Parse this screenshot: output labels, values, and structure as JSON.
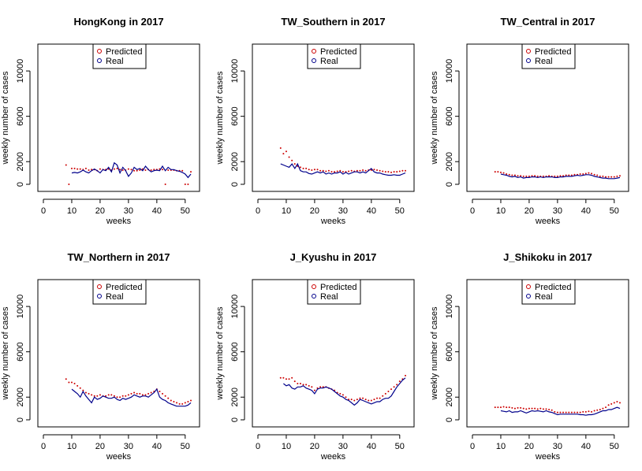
{
  "page": {
    "background": "#ffffff"
  },
  "colors": {
    "predicted": "#cc0000",
    "real": "#00008b",
    "axis": "#000000"
  },
  "chart_data": [
    {
      "type": "line",
      "title": "HongKong  in 2017",
      "xlabel": "weeks",
      "ylabel": "weekly number of cases",
      "xlim": [
        0,
        53
      ],
      "ylim": [
        0,
        12300
      ],
      "xticks": [
        0,
        10,
        20,
        30,
        40,
        50
      ],
      "yticks": [
        0,
        2000,
        6000,
        10000
      ],
      "legend": {
        "position": "top-center",
        "entries": [
          "Predicted",
          "Real"
        ]
      },
      "x": [
        8,
        9,
        10,
        11,
        12,
        13,
        14,
        15,
        16,
        17,
        18,
        19,
        20,
        21,
        22,
        23,
        24,
        25,
        26,
        27,
        28,
        29,
        30,
        31,
        32,
        33,
        34,
        35,
        36,
        37,
        38,
        39,
        40,
        41,
        42,
        43,
        44,
        45,
        46,
        47,
        48,
        49,
        50,
        51,
        52
      ],
      "series": [
        {
          "name": "Predicted",
          "style": "points",
          "color": "#cc0000",
          "values": [
            1700,
            0,
            1400,
            1400,
            1350,
            1350,
            1300,
            1400,
            1250,
            1300,
            1300,
            1200,
            1350,
            1300,
            1300,
            1350,
            1250,
            1350,
            1400,
            1300,
            1250,
            1250,
            1350,
            1300,
            1200,
            1200,
            1250,
            1350,
            1250,
            1300,
            1250,
            1300,
            1300,
            1350,
            1300,
            0,
            1250,
            1250,
            1250,
            1200,
            1200,
            1200,
            0,
            0,
            1100
          ]
        },
        {
          "name": "Real",
          "style": "line",
          "color": "#00008b",
          "values": [
            null,
            null,
            1000,
            1050,
            1000,
            1100,
            1250,
            1100,
            1000,
            1200,
            1350,
            1200,
            1000,
            1300,
            1200,
            1500,
            1100,
            1900,
            1700,
            1000,
            1500,
            1200,
            700,
            1000,
            1500,
            1300,
            1400,
            1200,
            1600,
            1300,
            1100,
            1200,
            1250,
            1200,
            1600,
            1200,
            1500,
            1300,
            1300,
            1200,
            1150,
            1050,
            900,
            600,
            900
          ]
        }
      ]
    },
    {
      "type": "line",
      "title": "TW_Southern  in 2017",
      "xlabel": "weeks",
      "ylabel": "weekly number of cases",
      "xlim": [
        0,
        53
      ],
      "ylim": [
        0,
        12300
      ],
      "xticks": [
        0,
        10,
        20,
        30,
        40,
        50
      ],
      "yticks": [
        0,
        2000,
        6000,
        10000
      ],
      "legend": {
        "position": "top-center",
        "entries": [
          "Predicted",
          "Real"
        ]
      },
      "x": [
        8,
        9,
        10,
        11,
        12,
        13,
        14,
        15,
        16,
        17,
        18,
        19,
        20,
        21,
        22,
        23,
        24,
        25,
        26,
        27,
        28,
        29,
        30,
        31,
        32,
        33,
        34,
        35,
        36,
        37,
        38,
        39,
        40,
        41,
        42,
        43,
        44,
        45,
        46,
        47,
        48,
        49,
        50,
        51,
        52
      ],
      "series": [
        {
          "name": "Predicted",
          "style": "points",
          "color": "#cc0000",
          "values": [
            3200,
            2700,
            2900,
            2400,
            2100,
            1800,
            1600,
            1500,
            1400,
            1400,
            1300,
            1250,
            1300,
            1300,
            1200,
            1200,
            1150,
            1200,
            1100,
            1100,
            1150,
            1200,
            1100,
            1100,
            1150,
            1200,
            1150,
            1200,
            1200,
            1250,
            1200,
            1250,
            1250,
            1300,
            1250,
            1200,
            1150,
            1100,
            1100,
            1050,
            1100,
            1100,
            1150,
            1200,
            1200
          ]
        },
        {
          "name": "Real",
          "style": "line",
          "color": "#00008b",
          "values": [
            1800,
            1700,
            1600,
            1500,
            1800,
            1400,
            1800,
            1200,
            1100,
            1100,
            950,
            900,
            1000,
            1100,
            1000,
            1100,
            900,
            1000,
            900,
            1000,
            1000,
            1100,
            900,
            1050,
            900,
            1000,
            1100,
            1100,
            1000,
            1100,
            1000,
            1200,
            1400,
            1100,
            1000,
            1000,
            900,
            850,
            800,
            800,
            850,
            800,
            800,
            900,
            1000
          ]
        }
      ]
    },
    {
      "type": "line",
      "title": "TW_Central  in 2017",
      "xlabel": "weeks",
      "ylabel": "weekly number of cases",
      "xlim": [
        0,
        53
      ],
      "ylim": [
        0,
        12300
      ],
      "xticks": [
        0,
        10,
        20,
        30,
        40,
        50
      ],
      "yticks": [
        0,
        2000,
        6000,
        10000
      ],
      "legend": {
        "position": "top-center",
        "entries": [
          "Predicted",
          "Real"
        ]
      },
      "x": [
        8,
        9,
        10,
        11,
        12,
        13,
        14,
        15,
        16,
        17,
        18,
        19,
        20,
        21,
        22,
        23,
        24,
        25,
        26,
        27,
        28,
        29,
        30,
        31,
        32,
        33,
        34,
        35,
        36,
        37,
        38,
        39,
        40,
        41,
        42,
        43,
        44,
        45,
        46,
        47,
        48,
        49,
        50,
        51,
        52
      ],
      "series": [
        {
          "name": "Predicted",
          "style": "points",
          "color": "#cc0000",
          "values": [
            1100,
            1100,
            1050,
            1000,
            900,
            850,
            800,
            800,
            750,
            750,
            700,
            700,
            700,
            750,
            750,
            700,
            700,
            700,
            700,
            750,
            700,
            700,
            700,
            750,
            750,
            800,
            800,
            800,
            850,
            850,
            900,
            900,
            950,
            1000,
            950,
            850,
            800,
            700,
            700,
            650,
            650,
            650,
            650,
            700,
            750
          ]
        },
        {
          "name": "Real",
          "style": "line",
          "color": "#00008b",
          "values": [
            null,
            null,
            900,
            850,
            800,
            700,
            650,
            700,
            600,
            650,
            550,
            600,
            600,
            650,
            650,
            600,
            650,
            600,
            650,
            650,
            650,
            600,
            600,
            650,
            650,
            700,
            700,
            700,
            750,
            800,
            750,
            800,
            850,
            850,
            800,
            700,
            650,
            600,
            550,
            550,
            500,
            500,
            500,
            550,
            600
          ]
        }
      ]
    },
    {
      "type": "line",
      "title": "TW_Northern  in 2017",
      "xlabel": "weeks",
      "ylabel": "weekly number of cases",
      "xlim": [
        0,
        53
      ],
      "ylim": [
        0,
        12300
      ],
      "xticks": [
        0,
        10,
        20,
        30,
        40,
        50
      ],
      "yticks": [
        0,
        2000,
        6000,
        10000
      ],
      "legend": {
        "position": "top-center",
        "entries": [
          "Predicted",
          "Real"
        ]
      },
      "x": [
        8,
        9,
        10,
        11,
        12,
        13,
        14,
        15,
        16,
        17,
        18,
        19,
        20,
        21,
        22,
        23,
        24,
        25,
        26,
        27,
        28,
        29,
        30,
        31,
        32,
        33,
        34,
        35,
        36,
        37,
        38,
        39,
        40,
        41,
        42,
        43,
        44,
        45,
        46,
        47,
        48,
        49,
        50,
        51,
        52
      ],
      "series": [
        {
          "name": "Predicted",
          "style": "points",
          "color": "#cc0000",
          "values": [
            3600,
            3300,
            3300,
            3200,
            3000,
            2800,
            2600,
            2400,
            2300,
            2200,
            2100,
            2100,
            2200,
            2100,
            2100,
            2200,
            2200,
            2100,
            2000,
            2000,
            2100,
            2100,
            2200,
            2300,
            2400,
            2300,
            2300,
            2200,
            2200,
            2300,
            2400,
            2500,
            2700,
            2500,
            2300,
            2100,
            1900,
            1700,
            1600,
            1500,
            1400,
            1400,
            1500,
            1600,
            1700
          ]
        },
        {
          "name": "Real",
          "style": "line",
          "color": "#00008b",
          "values": [
            null,
            null,
            2700,
            2500,
            2300,
            2000,
            2500,
            2100,
            1800,
            1500,
            2000,
            1800,
            1900,
            2100,
            2000,
            1900,
            1900,
            2000,
            1800,
            1700,
            1900,
            1800,
            1900,
            2000,
            2200,
            2100,
            2000,
            2100,
            2100,
            2000,
            2200,
            2400,
            2700,
            2000,
            1800,
            1700,
            1500,
            1400,
            1300,
            1200,
            1200,
            1200,
            1200,
            1300,
            1500
          ]
        }
      ]
    },
    {
      "type": "line",
      "title": "J_Kyushu  in 2017",
      "xlabel": "weeks",
      "ylabel": "weekly number of cases",
      "xlim": [
        0,
        53
      ],
      "ylim": [
        0,
        12300
      ],
      "xticks": [
        0,
        10,
        20,
        30,
        40,
        50
      ],
      "yticks": [
        0,
        2000,
        6000,
        10000
      ],
      "legend": {
        "position": "top-center",
        "entries": [
          "Predicted",
          "Real"
        ]
      },
      "x": [
        8,
        9,
        10,
        11,
        12,
        13,
        14,
        15,
        16,
        17,
        18,
        19,
        20,
        21,
        22,
        23,
        24,
        25,
        26,
        27,
        28,
        29,
        30,
        31,
        32,
        33,
        34,
        35,
        36,
        37,
        38,
        39,
        40,
        41,
        42,
        43,
        44,
        45,
        46,
        47,
        48,
        49,
        50,
        51,
        52
      ],
      "series": [
        {
          "name": "Predicted",
          "style": "points",
          "color": "#cc0000",
          "values": [
            3700,
            3700,
            3600,
            3600,
            3700,
            3400,
            3200,
            3200,
            3100,
            3100,
            3000,
            2900,
            2600,
            2800,
            2900,
            2900,
            2900,
            2800,
            2700,
            2600,
            2400,
            2300,
            2200,
            2000,
            1800,
            1800,
            1700,
            1800,
            1900,
            1900,
            1800,
            1700,
            1700,
            1800,
            1900,
            1900,
            2100,
            2300,
            2500,
            2700,
            2900,
            3100,
            3400,
            3600,
            3900
          ]
        },
        {
          "name": "Real",
          "style": "line",
          "color": "#00008b",
          "values": [
            null,
            3200,
            3000,
            3100,
            2800,
            2700,
            2900,
            2900,
            3000,
            2800,
            2700,
            2600,
            2300,
            2700,
            2800,
            2800,
            2900,
            2800,
            2700,
            2500,
            2300,
            2100,
            2000,
            1800,
            1700,
            1500,
            1300,
            1500,
            1800,
            1700,
            1600,
            1500,
            1400,
            1500,
            1600,
            1600,
            1800,
            1900,
            1900,
            2100,
            2500,
            2900,
            3200,
            3500,
            3700
          ]
        }
      ]
    },
    {
      "type": "line",
      "title": "J_Shikoku  in 2017",
      "xlabel": "weeks",
      "ylabel": "weekly number of cases",
      "xlim": [
        0,
        53
      ],
      "ylim": [
        0,
        12300
      ],
      "xticks": [
        0,
        10,
        20,
        30,
        40,
        50
      ],
      "yticks": [
        0,
        2000,
        6000,
        10000
      ],
      "legend": {
        "position": "top-center",
        "entries": [
          "Predicted",
          "Real"
        ]
      },
      "x": [
        8,
        9,
        10,
        11,
        12,
        13,
        14,
        15,
        16,
        17,
        18,
        19,
        20,
        21,
        22,
        23,
        24,
        25,
        26,
        27,
        28,
        29,
        30,
        31,
        32,
        33,
        34,
        35,
        36,
        37,
        38,
        39,
        40,
        41,
        42,
        43,
        44,
        45,
        46,
        47,
        48,
        49,
        50,
        51,
        52
      ],
      "series": [
        {
          "name": "Predicted",
          "style": "points",
          "color": "#cc0000",
          "values": [
            1100,
            1100,
            1100,
            1150,
            1100,
            1100,
            1050,
            1000,
            1050,
            1050,
            1000,
            950,
            1000,
            1000,
            1000,
            950,
            1000,
            950,
            950,
            900,
            850,
            700,
            650,
            650,
            650,
            650,
            650,
            650,
            650,
            650,
            650,
            700,
            700,
            750,
            700,
            800,
            850,
            900,
            1000,
            1100,
            1300,
            1400,
            1500,
            1600,
            1500
          ]
        },
        {
          "name": "Real",
          "style": "line",
          "color": "#00008b",
          "values": [
            null,
            null,
            800,
            750,
            700,
            800,
            650,
            700,
            700,
            800,
            700,
            600,
            700,
            800,
            750,
            800,
            750,
            700,
            800,
            700,
            650,
            550,
            450,
            500,
            500,
            500,
            500,
            500,
            500,
            500,
            450,
            450,
            400,
            450,
            450,
            500,
            600,
            700,
            800,
            800,
            900,
            900,
            1000,
            1100,
            1000
          ]
        }
      ]
    }
  ]
}
